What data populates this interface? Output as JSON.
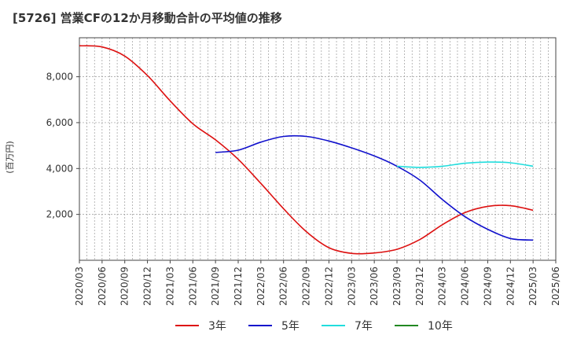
{
  "chart_data": {
    "type": "line",
    "title": "[5726]  営業CFの12か月移動合計の平均値の推移",
    "ylabel": "(百万円)",
    "xlabel": "",
    "ylim": [
      0,
      9700
    ],
    "yticks": [
      2000,
      4000,
      6000,
      8000
    ],
    "ytick_labels": [
      "2,000",
      "4,000",
      "6,000",
      "8,000"
    ],
    "xticks": [
      "2020/03",
      "2020/06",
      "2020/09",
      "2020/12",
      "2021/03",
      "2021/06",
      "2021/09",
      "2021/12",
      "2022/03",
      "2022/06",
      "2022/09",
      "2022/12",
      "2023/03",
      "2023/06",
      "2023/09",
      "2023/12",
      "2024/03",
      "2024/06",
      "2024/09",
      "2024/12",
      "2025/03",
      "2025/06"
    ],
    "grid": true,
    "legend_position": "bottom",
    "series": [
      {
        "name": "3年",
        "color": "#dd1111",
        "x": [
          "2020/03",
          "2020/06",
          "2020/09",
          "2020/12",
          "2021/03",
          "2021/06",
          "2021/09",
          "2021/12",
          "2022/03",
          "2022/06",
          "2022/09",
          "2022/12",
          "2023/03",
          "2023/06",
          "2023/09",
          "2023/12",
          "2024/03",
          "2024/06",
          "2024/09",
          "2024/12",
          "2025/03"
        ],
        "values": [
          9350,
          9300,
          8900,
          8050,
          6950,
          5950,
          5250,
          4400,
          3350,
          2250,
          1250,
          550,
          300,
          320,
          480,
          900,
          1550,
          2080,
          2350,
          2380,
          2180
        ]
      },
      {
        "name": "5年",
        "color": "#1111cc",
        "x": [
          "2021/09",
          "2021/12",
          "2022/03",
          "2022/06",
          "2022/09",
          "2022/12",
          "2023/03",
          "2023/06",
          "2023/09",
          "2023/12",
          "2024/03",
          "2024/06",
          "2024/09",
          "2024/12",
          "2025/03"
        ],
        "values": [
          4700,
          4800,
          5150,
          5400,
          5400,
          5200,
          4900,
          4550,
          4100,
          3500,
          2650,
          1900,
          1350,
          950,
          880
        ]
      },
      {
        "name": "7年",
        "color": "#22dddd",
        "x": [
          "2023/09",
          "2023/12",
          "2024/03",
          "2024/06",
          "2024/09",
          "2024/12",
          "2025/03"
        ],
        "values": [
          4100,
          4050,
          4100,
          4230,
          4280,
          4250,
          4100
        ]
      },
      {
        "name": "10年",
        "color": "#228822",
        "x": [],
        "values": []
      }
    ]
  }
}
